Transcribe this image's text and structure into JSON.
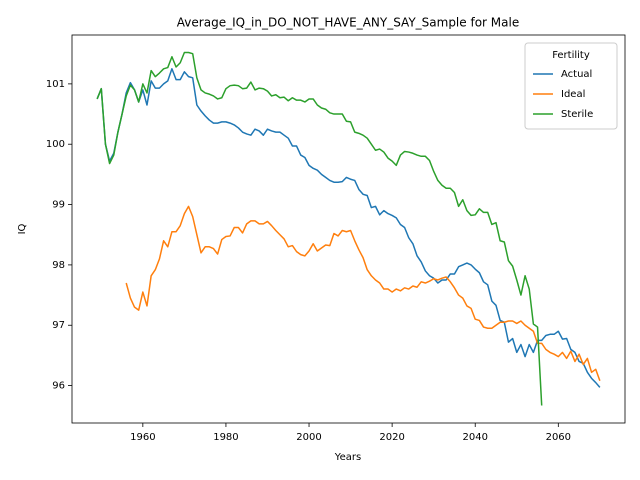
{
  "chart_data": {
    "type": "line",
    "title": "Average_IQ_in_DO_NOT_HAVE_ANY_SAY_Sample for Male",
    "x_label": "Years",
    "y_label": "IQ",
    "legend_title": "Fertility",
    "legend_loc": "upper right",
    "xlim": [
      1942.95,
      2076.05
    ],
    "ylim": [
      95.38,
      101.81
    ],
    "xticks": [
      1960,
      1980,
      2000,
      2020,
      2040,
      2060
    ],
    "yticks": [
      96,
      97,
      98,
      99,
      100,
      101
    ],
    "x": [
      1949,
      1950,
      1951,
      1952,
      1953,
      1954,
      1955,
      1956,
      1957,
      1958,
      1959,
      1960,
      1961,
      1962,
      1963,
      1964,
      1965,
      1966,
      1967,
      1968,
      1969,
      1970,
      1971,
      1972,
      1973,
      1974,
      1975,
      1976,
      1977,
      1978,
      1979,
      1980,
      1981,
      1982,
      1983,
      1984,
      1985,
      1986,
      1987,
      1988,
      1989,
      1990,
      1991,
      1992,
      1993,
      1994,
      1995,
      1996,
      1997,
      1998,
      1999,
      2000,
      2001,
      2002,
      2003,
      2004,
      2005,
      2006,
      2007,
      2008,
      2009,
      2010,
      2011,
      2012,
      2013,
      2014,
      2015,
      2016,
      2017,
      2018,
      2019,
      2020,
      2021,
      2022,
      2023,
      2024,
      2025,
      2026,
      2027,
      2028,
      2029,
      2030,
      2031,
      2032,
      2033,
      2034,
      2035,
      2036,
      2037,
      2038,
      2039,
      2040,
      2041,
      2042,
      2043,
      2044,
      2045,
      2046,
      2047,
      2048,
      2049,
      2050,
      2051,
      2052,
      2053,
      2054,
      2055,
      2056,
      2057,
      2058,
      2059,
      2060,
      2061,
      2062,
      2063,
      2064,
      2065,
      2066,
      2067,
      2068,
      2069,
      2070
    ],
    "series": [
      {
        "name": "Actual",
        "color": "#1f77b4",
        "values": [
          100.75,
          100.92,
          100.0,
          99.72,
          99.85,
          100.2,
          100.5,
          100.85,
          101.02,
          100.9,
          100.7,
          100.9,
          100.65,
          101.05,
          100.93,
          100.93,
          101.0,
          101.05,
          101.25,
          101.07,
          101.07,
          101.2,
          101.12,
          101.1,
          100.65,
          100.55,
          100.47,
          100.4,
          100.35,
          100.35,
          100.37,
          100.37,
          100.35,
          100.32,
          100.27,
          100.2,
          100.17,
          100.15,
          100.25,
          100.22,
          100.15,
          100.25,
          100.22,
          100.2,
          100.2,
          100.15,
          100.1,
          99.97,
          99.97,
          99.82,
          99.78,
          99.65,
          99.6,
          99.57,
          99.5,
          99.45,
          99.4,
          99.37,
          99.37,
          99.38,
          99.45,
          99.42,
          99.4,
          99.25,
          99.17,
          99.15,
          98.95,
          98.97,
          98.83,
          98.9,
          98.85,
          98.82,
          98.78,
          98.67,
          98.62,
          98.45,
          98.35,
          98.15,
          98.05,
          97.9,
          97.82,
          97.78,
          97.7,
          97.75,
          97.75,
          97.85,
          97.85,
          97.97,
          98.0,
          98.03,
          98.0,
          97.93,
          97.87,
          97.72,
          97.67,
          97.4,
          97.33,
          97.08,
          97.05,
          96.72,
          96.78,
          96.55,
          96.68,
          96.48,
          96.68,
          96.55,
          96.75,
          96.75,
          96.83,
          96.85,
          96.85,
          96.9,
          96.77,
          96.78,
          96.6,
          96.55,
          96.4,
          96.37,
          96.22,
          96.12,
          96.05,
          95.97
        ]
      },
      {
        "name": "Ideal",
        "color": "#ff7f0e",
        "values": [
          null,
          null,
          null,
          null,
          null,
          null,
          null,
          97.7,
          97.45,
          97.3,
          97.25,
          97.55,
          97.32,
          97.82,
          97.92,
          98.1,
          98.4,
          98.3,
          98.55,
          98.55,
          98.65,
          98.85,
          98.97,
          98.8,
          98.5,
          98.2,
          98.3,
          98.3,
          98.27,
          98.18,
          98.42,
          98.47,
          98.48,
          98.62,
          98.62,
          98.53,
          98.68,
          98.73,
          98.73,
          98.68,
          98.68,
          98.72,
          98.65,
          98.57,
          98.5,
          98.43,
          98.3,
          98.32,
          98.22,
          98.17,
          98.15,
          98.23,
          98.35,
          98.23,
          98.28,
          98.33,
          98.32,
          98.52,
          98.48,
          98.57,
          98.55,
          98.57,
          98.4,
          98.25,
          98.12,
          97.92,
          97.82,
          97.75,
          97.7,
          97.6,
          97.6,
          97.55,
          97.6,
          97.57,
          97.62,
          97.6,
          97.65,
          97.63,
          97.72,
          97.7,
          97.73,
          97.77,
          97.75,
          97.78,
          97.8,
          97.72,
          97.62,
          97.5,
          97.45,
          97.32,
          97.28,
          97.1,
          97.08,
          96.97,
          96.95,
          96.95,
          97.0,
          97.05,
          97.05,
          97.07,
          97.07,
          97.03,
          97.07,
          97.0,
          96.95,
          96.9,
          96.7,
          96.7,
          96.6,
          96.55,
          96.52,
          96.48,
          96.55,
          96.45,
          96.57,
          96.4,
          96.52,
          96.35,
          96.45,
          96.22,
          96.27,
          96.08
        ]
      },
      {
        "name": "Sterile",
        "color": "#2ca02c",
        "values": [
          100.75,
          100.92,
          100.0,
          99.68,
          99.82,
          100.2,
          100.5,
          100.8,
          100.98,
          100.9,
          100.7,
          101.0,
          100.85,
          101.22,
          101.12,
          101.18,
          101.25,
          101.27,
          101.45,
          101.28,
          101.35,
          101.52,
          101.52,
          101.5,
          101.1,
          100.9,
          100.85,
          100.83,
          100.8,
          100.75,
          100.77,
          100.92,
          100.97,
          100.98,
          100.97,
          100.92,
          100.93,
          101.03,
          100.9,
          100.93,
          100.92,
          100.88,
          100.8,
          100.82,
          100.77,
          100.78,
          100.72,
          100.77,
          100.73,
          100.73,
          100.7,
          100.75,
          100.75,
          100.65,
          100.6,
          100.58,
          100.52,
          100.5,
          100.5,
          100.5,
          100.38,
          100.37,
          100.2,
          100.18,
          100.15,
          100.1,
          100.0,
          99.9,
          99.92,
          99.87,
          99.77,
          99.72,
          99.65,
          99.82,
          99.88,
          99.87,
          99.85,
          99.82,
          99.8,
          99.8,
          99.73,
          99.55,
          99.4,
          99.32,
          99.27,
          99.27,
          99.2,
          98.97,
          99.08,
          98.9,
          98.82,
          98.83,
          98.93,
          98.87,
          98.87,
          98.67,
          98.7,
          98.4,
          98.38,
          98.07,
          97.98,
          97.75,
          97.5,
          97.82,
          97.6,
          97.02,
          96.97,
          95.67,
          null,
          null,
          null,
          null,
          null,
          null,
          null,
          null,
          null,
          null,
          null,
          null,
          null,
          null
        ]
      }
    ]
  }
}
